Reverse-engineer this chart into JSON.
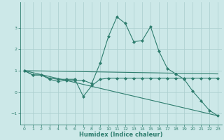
{
  "title": "",
  "xlabel": "Humidex (Indice chaleur)",
  "x": [
    0,
    1,
    2,
    3,
    4,
    5,
    6,
    7,
    8,
    9,
    10,
    11,
    12,
    13,
    14,
    15,
    16,
    17,
    18,
    19,
    20,
    21,
    22,
    23
  ],
  "line1": [
    1.0,
    0.8,
    0.8,
    0.6,
    0.5,
    0.55,
    0.55,
    0.55,
    0.4,
    1.35,
    2.6,
    3.5,
    3.2,
    2.35,
    2.4,
    3.05,
    1.9,
    1.1,
    0.85,
    0.6,
    0.05,
    -0.4,
    -0.85,
    -1.1
  ],
  "line2": [
    1.0,
    0.8,
    0.8,
    0.65,
    0.6,
    0.6,
    0.6,
    -0.2,
    0.3,
    0.6,
    0.65,
    0.65,
    0.65,
    0.65,
    0.65,
    0.65,
    0.65,
    0.65,
    0.65,
    0.65,
    0.65,
    0.65,
    0.65,
    0.65
  ],
  "line3_x": [
    0,
    23
  ],
  "line3_y": [
    1.0,
    0.85
  ],
  "line4_x": [
    0,
    23
  ],
  "line4_y": [
    1.0,
    -1.1
  ],
  "color": "#2e7d6e",
  "bg_color": "#cce8e8",
  "grid_color": "#aacece",
  "ylim": [
    -1.5,
    4.2
  ],
  "xlim": [
    -0.5,
    23.5
  ],
  "yticks": [
    -1,
    0,
    1,
    2,
    3
  ],
  "xticks": [
    0,
    1,
    2,
    3,
    4,
    5,
    6,
    7,
    8,
    9,
    10,
    11,
    12,
    13,
    14,
    15,
    16,
    17,
    18,
    19,
    20,
    21,
    22,
    23
  ]
}
